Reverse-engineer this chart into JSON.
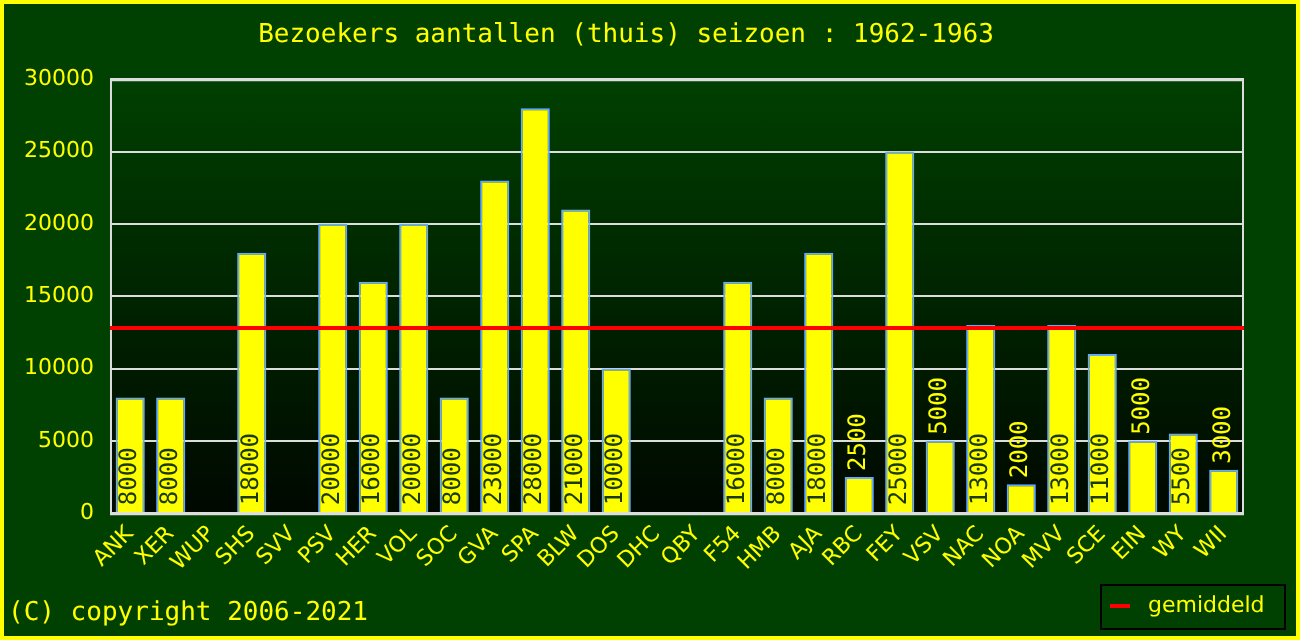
{
  "chart_data": {
    "type": "bar",
    "title": "Bezoekers aantallen (thuis) seizoen : 1962-1963",
    "categories": [
      "ANK",
      "XER",
      "WUP",
      "SHS",
      "SVV",
      "PSV",
      "HER",
      "VOL",
      "SOC",
      "GVA",
      "SPA",
      "BLW",
      "DOS",
      "DHC",
      "QBY",
      "F54",
      "HMB",
      "AJA",
      "RBC",
      "FEY",
      "VSV",
      "NAC",
      "NOA",
      "MVV",
      "SCE",
      "EIN",
      "WY",
      "WII"
    ],
    "values": [
      8000,
      8000,
      null,
      18000,
      null,
      20000,
      16000,
      20000,
      8000,
      23000,
      28000,
      21000,
      10000,
      null,
      null,
      16000,
      8000,
      18000,
      2500,
      25000,
      5000,
      13000,
      2000,
      13000,
      11000,
      5000,
      5500,
      3000
    ],
    "color": "#ffff00",
    "ylim": [
      0,
      30000
    ],
    "yticks": [
      0,
      5000,
      10000,
      15000,
      20000,
      25000,
      30000
    ],
    "grid": "y",
    "data_labels": true,
    "ref_lines": [
      {
        "axis": "y",
        "value": 12800,
        "label": "gemiddeld",
        "color": "#ff0000"
      }
    ],
    "legend": "bottom right",
    "annotations": [
      "(C) copyright 2006-2021"
    ]
  }
}
